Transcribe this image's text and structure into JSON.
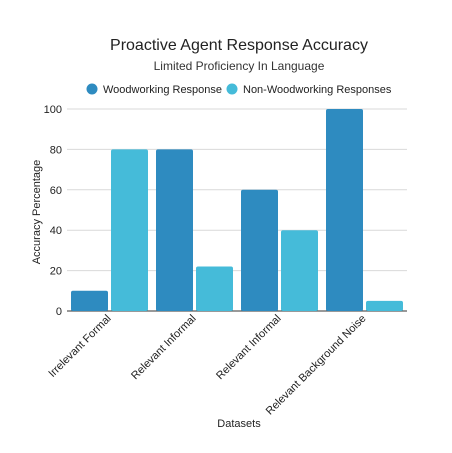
{
  "chart_data": {
    "type": "bar",
    "title": "Proactive Agent Response Accuracy",
    "subtitle": "Limited Proficiency In Language",
    "xlabel": "Datasets",
    "ylabel": "Accuracy Percentage",
    "categories": [
      "Irrelevant Formal",
      "Relevant Informal",
      "Relevant Informal",
      "Relevant Background Noise"
    ],
    "series": [
      {
        "name": "Woodworking Response",
        "values": [
          10,
          80,
          60,
          100
        ],
        "color": "#2E8BC0"
      },
      {
        "name": "Non-Woodworking Responses",
        "values": [
          80,
          22,
          40,
          5
        ],
        "color": "#45BBD9"
      }
    ],
    "ylim": [
      0,
      100
    ],
    "yticks": [
      0,
      20,
      40,
      60,
      80,
      100
    ],
    "grid": true,
    "legend_position": "top"
  }
}
